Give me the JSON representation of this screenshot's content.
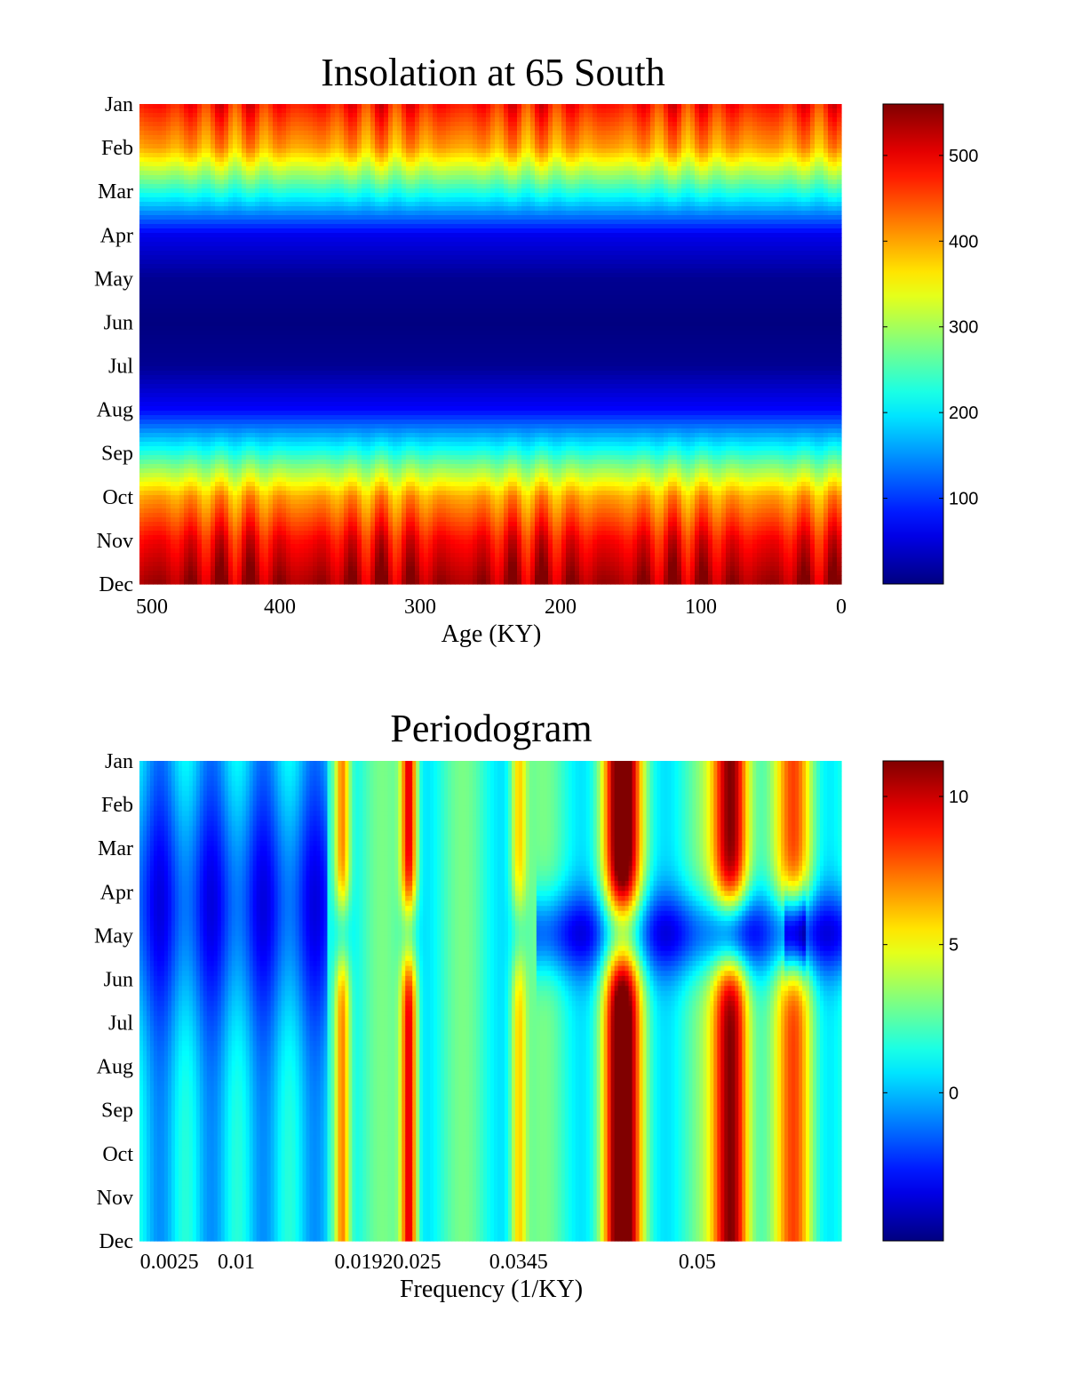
{
  "chart_data": [
    {
      "type": "heatmap",
      "title": "Insolation at 65 South",
      "xlabel": "Age (KY)",
      "ylabel": "",
      "x_ticks": [
        500,
        400,
        300,
        200,
        100,
        0
      ],
      "x_range": [
        500,
        0
      ],
      "y_categories": [
        "Jan",
        "Feb",
        "Mar",
        "Apr",
        "May",
        "Jun",
        "Jul",
        "Aug",
        "Sep",
        "Oct",
        "Nov",
        "Dec"
      ],
      "value_range": [
        0,
        560
      ],
      "colorbar_ticks": [
        100,
        200,
        300,
        400,
        500
      ],
      "colormap": "jet",
      "monthly_mean": [
        480,
        400,
        230,
        60,
        10,
        0,
        10,
        70,
        230,
        400,
        490,
        540
      ],
      "grid": false,
      "legend": "colorbar-right"
    },
    {
      "type": "heatmap",
      "title": "Periodogram",
      "xlabel": "Frequency (1/KY)",
      "ylabel": "",
      "x_ticks": [
        0.0025,
        0.01,
        0.0192,
        0.025,
        0.0345,
        0.05
      ],
      "x_tick_labels": [
        "0.0025",
        "0.01",
        "0.0192",
        "0.025",
        "0.0345",
        "0.05"
      ],
      "x_range": [
        0.0016,
        0.0625
      ],
      "y_categories": [
        "Jan",
        "Feb",
        "Mar",
        "Apr",
        "May",
        "Jun",
        "Jul",
        "Aug",
        "Sep",
        "Oct",
        "Nov",
        "Dec"
      ],
      "value_range": [
        -5,
        11.2
      ],
      "colorbar_ticks": [
        0,
        5,
        10
      ],
      "colormap": "jet",
      "peak_frequencies": [
        0.0192,
        0.025,
        0.0345,
        0.0435,
        0.053,
        0.0585
      ],
      "grid": false,
      "legend": "colorbar-right"
    }
  ]
}
